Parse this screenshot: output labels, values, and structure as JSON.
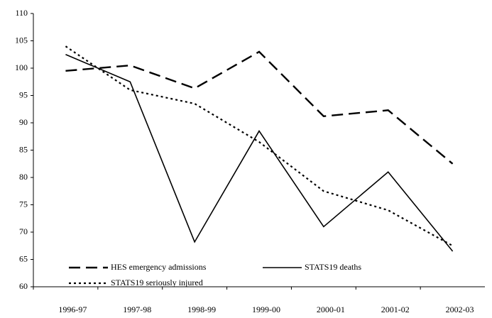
{
  "chart_data": {
    "type": "line",
    "categories": [
      "1996-97",
      "1997-98",
      "1998-99",
      "1999-00",
      "2000-01",
      "2001-02",
      "2002-03"
    ],
    "series": [
      {
        "name": "HES emergency admissions",
        "color": "#000000",
        "dash": "long-dash",
        "values": [
          99.5,
          100.5,
          96.3,
          103,
          91.2,
          92.3,
          82.5
        ]
      },
      {
        "name": "STATS19 deaths",
        "color": "#000000",
        "dash": "solid",
        "values": [
          102.5,
          97.5,
          68.2,
          88.5,
          71,
          81,
          66.5
        ]
      },
      {
        "name": "STATS19 seriously injured",
        "color": "#000000",
        "dash": "dotted",
        "values": [
          104,
          96,
          93.5,
          86.5,
          77.5,
          74,
          67.5
        ]
      }
    ],
    "ylim": [
      60,
      110
    ],
    "yticks": [
      60,
      65,
      70,
      75,
      80,
      85,
      90,
      95,
      100,
      105,
      110
    ],
    "grid": false,
    "legend": "lower left"
  }
}
